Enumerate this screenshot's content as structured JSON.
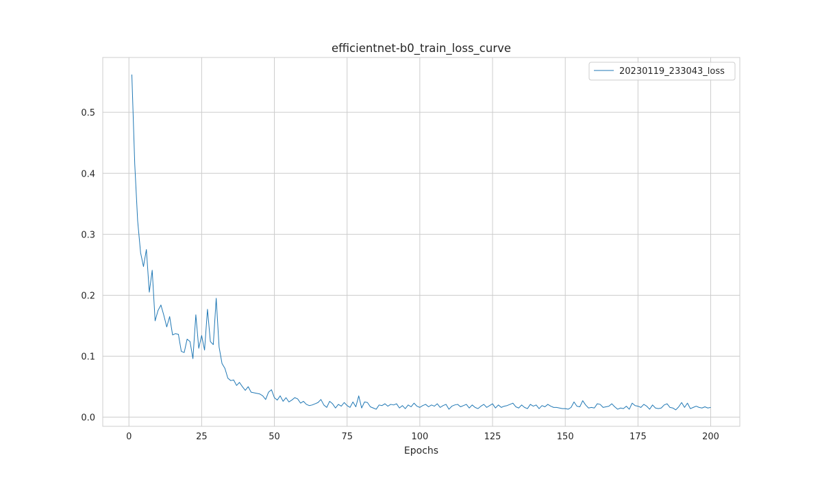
{
  "chart_data": {
    "type": "line",
    "title": "efficientnet-b0_train_loss_curve",
    "xlabel": "Epochs",
    "ylabel": "",
    "xlim": [
      -9,
      210
    ],
    "ylim": [
      -0.015,
      0.59
    ],
    "xticks": [
      0,
      25,
      50,
      75,
      100,
      125,
      150,
      175,
      200
    ],
    "yticks": [
      0.0,
      0.1,
      0.2,
      0.3,
      0.4,
      0.5
    ],
    "ytick_labels": [
      "0.0",
      "0.1",
      "0.2",
      "0.3",
      "0.4",
      "0.5"
    ],
    "grid": true,
    "legend_position": "top-right",
    "series": [
      {
        "name": "20230119_233043_loss",
        "color": "#1f77b4",
        "x": [
          1,
          2,
          3,
          4,
          5,
          6,
          7,
          8,
          9,
          10,
          11,
          12,
          13,
          14,
          15,
          16,
          17,
          18,
          19,
          20,
          21,
          22,
          23,
          24,
          25,
          26,
          27,
          28,
          29,
          30,
          31,
          32,
          33,
          34,
          35,
          36,
          37,
          38,
          39,
          40,
          41,
          42,
          43,
          44,
          45,
          46,
          47,
          48,
          49,
          50,
          51,
          52,
          53,
          54,
          55,
          56,
          57,
          58,
          59,
          60,
          61,
          62,
          63,
          64,
          65,
          66,
          67,
          68,
          69,
          70,
          71,
          72,
          73,
          74,
          75,
          76,
          77,
          78,
          79,
          80,
          81,
          82,
          83,
          84,
          85,
          86,
          87,
          88,
          89,
          90,
          91,
          92,
          93,
          94,
          95,
          96,
          97,
          98,
          99,
          100,
          101,
          102,
          103,
          104,
          105,
          106,
          107,
          108,
          109,
          110,
          111,
          112,
          113,
          114,
          115,
          116,
          117,
          118,
          119,
          120,
          121,
          122,
          123,
          124,
          125,
          126,
          127,
          128,
          129,
          130,
          131,
          132,
          133,
          134,
          135,
          136,
          137,
          138,
          139,
          140,
          141,
          142,
          143,
          144,
          145,
          146,
          147,
          148,
          149,
          150,
          151,
          152,
          153,
          154,
          155,
          156,
          157,
          158,
          159,
          160,
          161,
          162,
          163,
          164,
          165,
          166,
          167,
          168,
          169,
          170,
          171,
          172,
          173,
          174,
          175,
          176,
          177,
          178,
          179,
          180,
          181,
          182,
          183,
          184,
          185,
          186,
          187,
          188,
          189,
          190,
          191,
          192,
          193,
          194,
          195,
          196,
          197,
          198,
          199,
          200
        ],
        "values": [
          0.562,
          0.415,
          0.322,
          0.27,
          0.247,
          0.275,
          0.205,
          0.241,
          0.158,
          0.175,
          0.184,
          0.167,
          0.148,
          0.165,
          0.135,
          0.137,
          0.136,
          0.108,
          0.106,
          0.128,
          0.124,
          0.096,
          0.168,
          0.113,
          0.134,
          0.11,
          0.177,
          0.124,
          0.119,
          0.195,
          0.115,
          0.088,
          0.08,
          0.064,
          0.06,
          0.061,
          0.052,
          0.057,
          0.05,
          0.044,
          0.05,
          0.041,
          0.04,
          0.039,
          0.038,
          0.035,
          0.029,
          0.041,
          0.045,
          0.032,
          0.028,
          0.035,
          0.026,
          0.032,
          0.025,
          0.028,
          0.032,
          0.03,
          0.023,
          0.026,
          0.021,
          0.019,
          0.02,
          0.022,
          0.024,
          0.029,
          0.02,
          0.016,
          0.026,
          0.022,
          0.015,
          0.021,
          0.018,
          0.024,
          0.019,
          0.016,
          0.025,
          0.017,
          0.035,
          0.015,
          0.025,
          0.024,
          0.017,
          0.015,
          0.013,
          0.02,
          0.019,
          0.022,
          0.018,
          0.021,
          0.02,
          0.022,
          0.015,
          0.019,
          0.014,
          0.02,
          0.017,
          0.023,
          0.018,
          0.016,
          0.019,
          0.021,
          0.017,
          0.02,
          0.018,
          0.022,
          0.016,
          0.019,
          0.021,
          0.013,
          0.018,
          0.02,
          0.021,
          0.017,
          0.019,
          0.021,
          0.015,
          0.02,
          0.016,
          0.014,
          0.018,
          0.021,
          0.016,
          0.019,
          0.022,
          0.015,
          0.02,
          0.016,
          0.018,
          0.019,
          0.021,
          0.023,
          0.017,
          0.015,
          0.02,
          0.016,
          0.014,
          0.021,
          0.018,
          0.02,
          0.014,
          0.019,
          0.017,
          0.021,
          0.018,
          0.016,
          0.016,
          0.015,
          0.014,
          0.014,
          0.013,
          0.016,
          0.025,
          0.018,
          0.017,
          0.027,
          0.02,
          0.015,
          0.016,
          0.015,
          0.022,
          0.021,
          0.016,
          0.017,
          0.018,
          0.022,
          0.017,
          0.013,
          0.015,
          0.014,
          0.018,
          0.013,
          0.023,
          0.019,
          0.018,
          0.016,
          0.021,
          0.018,
          0.013,
          0.02,
          0.015,
          0.014,
          0.015,
          0.02,
          0.022,
          0.016,
          0.015,
          0.012,
          0.017,
          0.024,
          0.016,
          0.023,
          0.014,
          0.016,
          0.018,
          0.016,
          0.015,
          0.017,
          0.015,
          0.016
        ]
      }
    ]
  }
}
